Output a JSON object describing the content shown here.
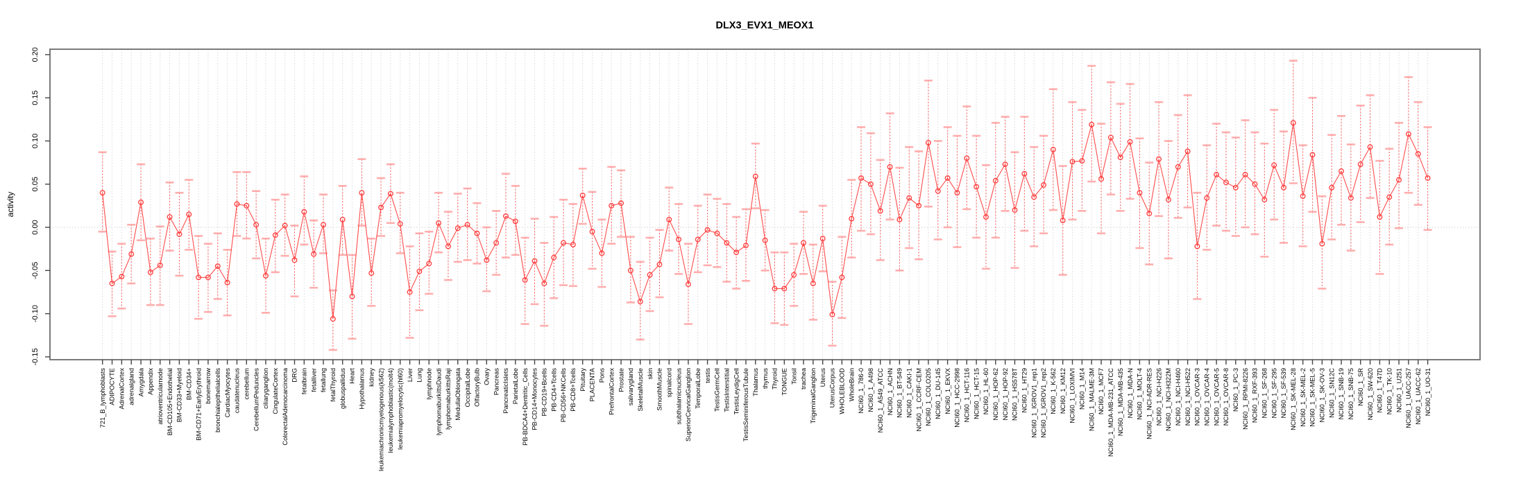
{
  "page": {
    "background": "#ffffff"
  },
  "chart_data": {
    "type": "line",
    "title": "DLX3_EVX1_MEOX1",
    "xlabel": "",
    "ylabel": "activity",
    "ylim": [
      -0.1525,
      0.2063
    ],
    "yticks": [
      -0.15,
      -0.1,
      -0.05,
      0.0,
      0.05,
      0.1,
      0.15,
      0.2
    ],
    "grid": true,
    "zero_line": true,
    "legend": "none",
    "point_style": "open-circle",
    "error_bars": true,
    "colors": {
      "series_line": "#ff4a4a",
      "point_stroke": "#ff3b3b",
      "error_stem": "#ff4a4a",
      "error_cap": "#ffa0a0",
      "grid": "#d9d9d9",
      "zero_line": "#cfcfcf",
      "box": "#7a7a7a",
      "tick": "#444444",
      "text": "#000000"
    },
    "categories": [
      "721_B_lymphoblasts",
      "ADIPOCYTE",
      "AdrenalCortex",
      "adrenalgland",
      "Amygdala",
      "Appendix",
      "atrioventricularnode",
      "BM-CD105+Endothelial",
      "BM-CD33+Myeloid",
      "BM-CD34+",
      "BM-CD71+EarlyErythroid",
      "bonemarrow",
      "bronchialepithelialcells",
      "CardiacMyocytes",
      "caudatenucleus",
      "cerebellum",
      "CerebellumPeduncles",
      "ciliaryganglion",
      "CingulateCortex",
      "ColorectalAdenocarcinoma",
      "DRG",
      "fetalbrain",
      "fetalliver",
      "fetallung",
      "fetalThyroid",
      "globuspallidus",
      "Heart",
      "Hypothalamus",
      "kidney",
      "leukemiachronicmyelogenous(k562)",
      "leukemialymphoblastic(molt4)",
      "leukemiapromyelocytic(hl60)",
      "Liver",
      "Lung",
      "lymphnode",
      "lymphomaburkittsDaudi",
      "lymphomaburkittsRaji",
      "MedullaOblongata",
      "OccipitalLobe",
      "OlfactoryBulb",
      "Ovary",
      "Pancreas",
      "PancreaticIslets",
      "ParietalLobe",
      "PB-BDCA4+Dentritic_Cells",
      "PB-CD14+Monocytes",
      "PB-CD19+Bcells",
      "PB-CD4+Tcells",
      "PB-CD56+NKCells",
      "PB-CD8+Tcells",
      "Pituitary",
      "PLACENTA",
      "Pons",
      "PrefrontalCortex",
      "Prostate",
      "salivarygland",
      "SkeletalMuscle",
      "skin",
      "SmoothMuscle",
      "spinalcord",
      "subthalamicnucleus",
      "SuperiorCervicalGanglion",
      "TemporalLobe",
      "testis",
      "TestisGermCell",
      "TestisInterstitial",
      "TestisLeydigCell",
      "TestisSeminiferousTubule",
      "Thalamus",
      "thymus",
      "Thyroid",
      "TONGUE",
      "Tonsil",
      "trachea",
      "TrigeminalGanglion",
      "Uterus",
      "UterusCorpus",
      "WHOLEBLOOD",
      "WholeBrain",
      "NCI60_1_786-0",
      "NCI60_1_A498",
      "NCI60_1_A549_ATCC",
      "NCI60_1_ACHN",
      "NCI60_1_BT-549",
      "NCI60_1_CAKI-1",
      "NCI60_1_CCRF-CEM",
      "NCI60_1_COLO205",
      "NCI60_1_DU-145",
      "NCI60_1_EKVX",
      "NCI60_1_HCC-2998",
      "NCI60_1_HCT-116",
      "NCI60_1_HCT-15",
      "NCI60_1_HL-60",
      "NCI60_1_HOP-62",
      "NCI60_1_HOP-92",
      "NCI60_1_HS578T",
      "NCI60_1_HT29",
      "NCI60_1_IGROV1_rep1",
      "NCI60_1_IGROV1_rep2",
      "NCI60_1_K-562",
      "NCI60_1_KM12",
      "NCI60_1_LOXIMVI",
      "NCI60_1_M14",
      "NCI60_1_MALME-3M",
      "NCI60_1_MCF7",
      "NCI60_1_MDA-MB-231_ATCC",
      "NCI60_1_MDA-MB-435",
      "NCI60_1_MDA-N",
      "NCI60_1_MOLT-4",
      "NCI60_1_NCI-ADR-RES",
      "NCI60_1_NCI-H226",
      "NCI60_1_NCI-H322M",
      "NCI60_1_NCI-H460",
      "NCI60_1_NCI-H522",
      "NCI60_1_OVCAR-3",
      "NCI60_1_OVCAR-4",
      "NCI60_1_OVCAR-5",
      "NCI60_1_OVCAR-8",
      "NCI60_1_PC-3",
      "NCI60_1_RPMI-8226",
      "NCI60_1_RXF-393",
      "NCI60_1_SF-268",
      "NCI60_1_SF-295",
      "NCI60_1_SF-539",
      "NCI60_1_SK-MEL-28",
      "NCI60_1_SK-MEL-2",
      "NCI60_1_SK-MEL-5",
      "NCI60_1_SK-OV-3",
      "NCI60_1_SN12C",
      "NCI60_1_SNB-19",
      "NCI60_1_SNB-75",
      "NCI60_1_SR",
      "NCI60_1_SW-620",
      "NCI60_1_T47D",
      "NCI60_1_TK-10",
      "NCI60_1_U251",
      "NCI60_1_UACC-257",
      "NCI60_1_UACC-62",
      "NCI60_1_UO-31"
    ],
    "series": [
      {
        "name": "activity",
        "values": [
          0.04,
          -0.065,
          -0.057,
          -0.031,
          0.029,
          -0.052,
          -0.044,
          0.012,
          -0.008,
          0.015,
          -0.058,
          -0.058,
          -0.045,
          -0.064,
          0.027,
          0.025,
          0.003,
          -0.056,
          -0.009,
          0.002,
          -0.038,
          0.018,
          -0.031,
          0.003,
          -0.106,
          0.009,
          -0.08,
          0.04,
          -0.053,
          0.023,
          0.039,
          0.004,
          -0.075,
          -0.051,
          -0.042,
          0.005,
          -0.022,
          -0.001,
          0.003,
          -0.007,
          -0.038,
          -0.018,
          0.013,
          0.007,
          -0.061,
          -0.039,
          -0.065,
          -0.035,
          -0.018,
          -0.02,
          0.037,
          -0.005,
          -0.03,
          0.025,
          0.028,
          -0.05,
          -0.086,
          -0.055,
          -0.043,
          0.009,
          -0.014,
          -0.066,
          -0.014,
          -0.003,
          -0.007,
          -0.018,
          -0.029,
          -0.021,
          0.059,
          -0.015,
          -0.071,
          -0.071,
          -0.055,
          -0.018,
          -0.065,
          -0.013,
          -0.101,
          -0.058,
          0.01,
          0.057,
          0.05,
          0.019,
          0.07,
          0.009,
          0.034,
          0.025,
          0.098,
          0.042,
          0.057,
          0.04,
          0.08,
          0.047,
          0.012,
          0.054,
          0.073,
          0.02,
          0.062,
          0.035,
          0.049,
          0.09,
          0.008,
          0.076,
          0.077,
          0.119,
          0.056,
          0.104,
          0.081,
          0.099,
          0.04,
          0.016,
          0.079,
          0.032,
          0.07,
          0.088,
          -0.022,
          0.034,
          0.061,
          0.052,
          0.046,
          0.061,
          0.05,
          0.032,
          0.072,
          0.046,
          0.121,
          0.036,
          0.084,
          -0.019,
          0.046,
          0.065,
          0.034,
          0.073,
          0.093,
          0.012,
          0.035,
          0.055,
          0.108,
          0.085,
          0.057
        ],
        "err_hi": [
          0.087,
          -0.028,
          -0.019,
          0.003,
          0.073,
          -0.013,
          0.001,
          0.052,
          0.04,
          0.055,
          -0.01,
          -0.019,
          -0.007,
          -0.026,
          0.064,
          0.064,
          0.042,
          -0.013,
          0.032,
          0.038,
          0.002,
          0.059,
          0.008,
          0.038,
          -0.073,
          0.048,
          -0.032,
          0.079,
          -0.013,
          0.057,
          0.073,
          0.04,
          -0.022,
          -0.007,
          -0.005,
          0.04,
          0.018,
          0.039,
          0.045,
          0.028,
          0.0,
          0.019,
          0.062,
          0.048,
          -0.012,
          0.01,
          -0.018,
          0.012,
          0.032,
          0.027,
          0.068,
          0.041,
          0.009,
          0.07,
          0.066,
          -0.011,
          -0.04,
          -0.012,
          -0.003,
          0.046,
          0.027,
          -0.019,
          0.025,
          0.038,
          0.033,
          0.027,
          0.012,
          0.021,
          0.097,
          0.02,
          -0.029,
          -0.029,
          -0.019,
          0.018,
          -0.02,
          0.025,
          -0.063,
          -0.011,
          0.055,
          0.116,
          0.109,
          0.078,
          0.132,
          0.069,
          0.093,
          0.088,
          0.17,
          0.1,
          0.116,
          0.106,
          0.14,
          0.106,
          0.072,
          0.121,
          0.128,
          0.087,
          0.128,
          0.093,
          0.106,
          0.16,
          0.071,
          0.145,
          0.136,
          0.187,
          0.12,
          0.168,
          0.143,
          0.166,
          0.103,
          0.075,
          0.145,
          0.1,
          0.13,
          0.153,
          0.04,
          0.095,
          0.12,
          0.11,
          0.104,
          0.124,
          0.11,
          0.097,
          0.136,
          0.111,
          0.193,
          0.095,
          0.15,
          0.036,
          0.107,
          0.129,
          0.096,
          0.141,
          0.153,
          0.077,
          0.091,
          0.121,
          0.174,
          0.145,
          0.116
        ],
        "err_lo": [
          -0.005,
          -0.103,
          -0.094,
          -0.065,
          -0.015,
          -0.09,
          -0.09,
          -0.027,
          -0.056,
          -0.026,
          -0.106,
          -0.098,
          -0.083,
          -0.102,
          -0.01,
          -0.013,
          -0.036,
          -0.099,
          -0.052,
          -0.033,
          -0.08,
          -0.02,
          -0.07,
          -0.03,
          -0.142,
          -0.032,
          -0.129,
          0.002,
          -0.091,
          -0.01,
          0.005,
          -0.03,
          -0.128,
          -0.096,
          -0.077,
          -0.029,
          -0.061,
          -0.04,
          -0.038,
          -0.042,
          -0.074,
          -0.055,
          -0.035,
          -0.032,
          -0.112,
          -0.089,
          -0.114,
          -0.082,
          -0.067,
          -0.068,
          0.004,
          -0.048,
          -0.069,
          -0.019,
          -0.011,
          -0.087,
          -0.13,
          -0.097,
          -0.081,
          -0.027,
          -0.054,
          -0.112,
          -0.052,
          -0.044,
          -0.046,
          -0.063,
          -0.071,
          -0.062,
          0.022,
          -0.05,
          -0.111,
          -0.113,
          -0.091,
          -0.054,
          -0.107,
          -0.051,
          -0.137,
          -0.105,
          -0.035,
          -0.004,
          -0.008,
          -0.038,
          0.009,
          -0.05,
          -0.024,
          -0.037,
          0.024,
          -0.014,
          0.0,
          -0.023,
          0.021,
          -0.012,
          -0.048,
          -0.012,
          0.019,
          -0.047,
          -0.004,
          -0.022,
          -0.007,
          0.02,
          -0.055,
          0.009,
          0.019,
          0.053,
          -0.007,
          0.038,
          0.019,
          0.033,
          -0.024,
          -0.043,
          0.013,
          -0.036,
          0.011,
          0.023,
          -0.083,
          -0.026,
          0.002,
          -0.004,
          -0.01,
          0.0,
          -0.008,
          -0.034,
          0.009,
          -0.018,
          0.051,
          -0.022,
          0.018,
          -0.071,
          -0.014,
          0.003,
          -0.027,
          0.006,
          0.034,
          -0.054,
          -0.02,
          -0.001,
          0.04,
          0.026,
          -0.003
        ]
      }
    ]
  }
}
